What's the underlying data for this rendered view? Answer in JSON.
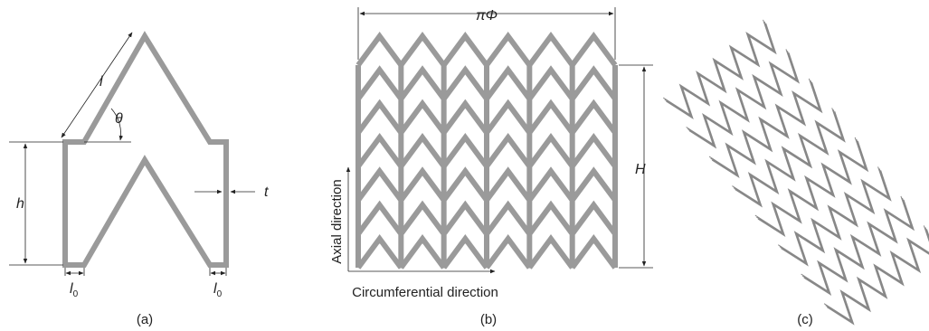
{
  "panel_a": {
    "label": "(a)",
    "strut_length": "l",
    "angle": "θ",
    "height": "h",
    "thickness": "t",
    "left_link": {
      "text": "l",
      "subscript": "0"
    },
    "right_link": {
      "text": "l",
      "subscript": "0"
    }
  },
  "panel_b": {
    "label": "(b)",
    "width": "πΦ",
    "height": "H",
    "axial": "Axial direction",
    "circumferential": "Circumferential direction"
  },
  "panel_c": {
    "label": "(c)"
  }
}
